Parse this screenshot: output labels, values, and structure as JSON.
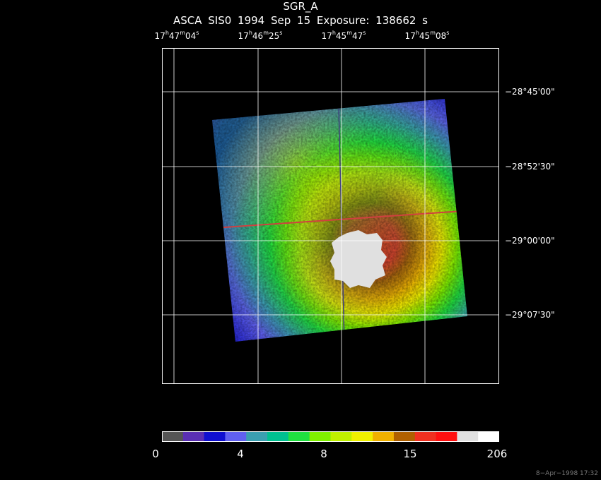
{
  "header": {
    "object": "SGR_A",
    "instrument_line": "ASCA SIS0   1994 Sep 15    Exposure: 138662 s"
  },
  "ra_ticks": [
    {
      "h": "17",
      "m": "47",
      "s": "04"
    },
    {
      "h": "17",
      "m": "46",
      "s": "25"
    },
    {
      "h": "17",
      "m": "45",
      "s": "47"
    },
    {
      "h": "17",
      "m": "45",
      "s": "08"
    }
  ],
  "dec_ticks": [
    "−28°45'00\"",
    "−28°52'30\"",
    "−29°00'00\"",
    "−29°07'30\""
  ],
  "colorbar": {
    "colors": [
      "#555555",
      "#5a2fb3",
      "#1010d0",
      "#6060f0",
      "#3a9fb0",
      "#00c090",
      "#20e040",
      "#80f000",
      "#c0f000",
      "#f0f000",
      "#f0b000",
      "#b06000",
      "#f03020",
      "#ff1010",
      "#e0e0e0",
      "#ffffff"
    ],
    "labels": [
      "0",
      "4",
      "8",
      "15",
      "206"
    ]
  },
  "timestamp": "8−Apr−1998 17:32"
}
